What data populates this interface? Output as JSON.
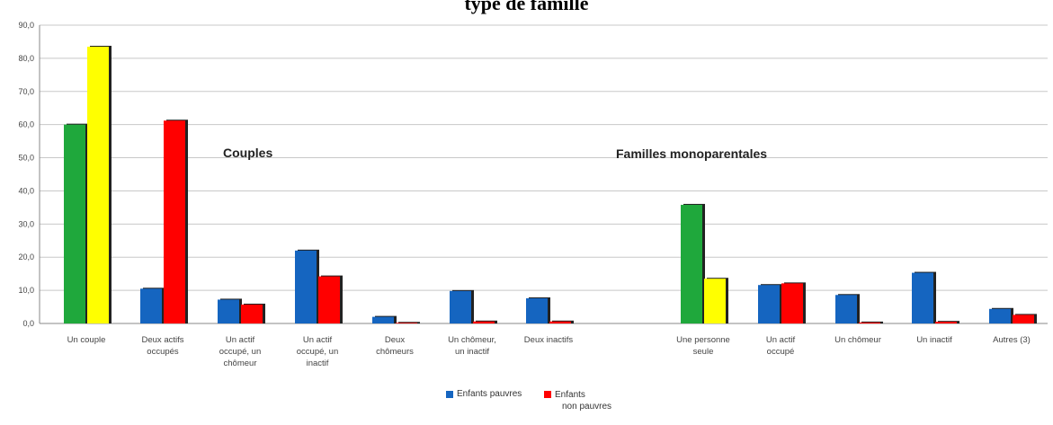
{
  "chart_data": {
    "type": "bar",
    "title": "type de famille",
    "ylim": [
      0,
      90
    ],
    "yticks": [
      "0,0",
      "10,0",
      "20,0",
      "30,0",
      "40,0",
      "50,0",
      "60,0",
      "70,0",
      "80,0",
      "90,0"
    ],
    "grid": true,
    "groups": [
      {
        "label": "Couples",
        "categories": [
          "Un couple",
          "Deux actifs occupés",
          "Un actif occupé, un chômeur",
          "Un actif occupé, un inactif",
          "Deux chômeurs",
          "Un chômeur, un inactif",
          "Deux inactifs"
        ]
      },
      {
        "label": "Familles monoparentales",
        "categories": [
          "Une personne seule",
          "Un actif occupé",
          "Un chômeur",
          "Un inactif",
          "Autres (3)"
        ]
      }
    ],
    "categories": [
      "Un couple",
      "Deux actifs occupés",
      "Un actif occupé, un chômeur",
      "Un actif occupé, un inactif",
      "Deux chômeurs",
      "Un chômeur, un inactif",
      "Deux inactifs",
      "Une personne seule",
      "Un actif occupé",
      "Un chômeur",
      "Un inactif",
      "Autres (3)"
    ],
    "series": [
      {
        "name": "Enfants pauvres",
        "color": "#1565C0",
        "values": [
          60.0,
          10.5,
          7.2,
          22.0,
          2.0,
          9.8,
          7.6,
          35.8,
          11.6,
          8.6,
          15.3,
          4.4
        ]
      },
      {
        "name": "Enfants non pauvres",
        "color": "#FF0000",
        "values": [
          83.5,
          61.2,
          5.7,
          14.2,
          0.2,
          0.6,
          0.6,
          13.5,
          12.1,
          0.3,
          0.5,
          2.6
        ]
      }
    ],
    "subtotal_colors": [
      "#1FA83C",
      "#FFFF00"
    ],
    "subtotal_indices": [
      0,
      7
    ],
    "legend_position": "bottom"
  },
  "legend": {
    "pauvres_line1": "Enfants pauvres",
    "non_pauvres_line1": "Enfants",
    "non_pauvres_line2": "non pauvres",
    "pauvres_color": "#1565C0",
    "non_pauvres_color": "#FF0000"
  }
}
